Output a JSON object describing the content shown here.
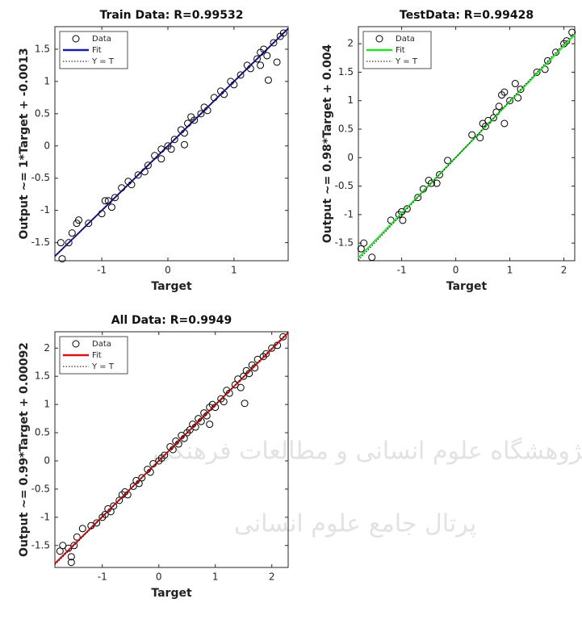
{
  "chart_data": [
    {
      "type": "scatter",
      "title": "Train Data: R=0.99532",
      "x_label": "Target",
      "y_label": "Output ~= 1*Target + -0.0013",
      "xlim": [
        -1.71,
        1.82
      ],
      "ylim": [
        -1.78,
        1.85
      ],
      "xticks": [
        -1,
        0,
        1
      ],
      "yticks": [
        -1.5,
        -1,
        -0.5,
        0,
        0.5,
        1,
        1.5
      ],
      "legend": "upper left",
      "series": [
        {
          "name": "Data",
          "kind": "markers",
          "color": "#000000",
          "x": [
            -1.6,
            -1.62,
            -1.5,
            -1.45,
            -1.38,
            -1.35,
            -1.2,
            -1.0,
            -0.95,
            -0.9,
            -0.85,
            -0.8,
            -0.7,
            -0.6,
            -0.55,
            -0.45,
            -0.35,
            -0.3,
            -0.2,
            -0.1,
            0.0,
            0.05,
            0.1,
            0.2,
            0.25,
            0.3,
            0.35,
            0.4,
            0.5,
            0.55,
            0.6,
            0.7,
            0.8,
            0.85,
            0.95,
            1.0,
            1.1,
            1.2,
            1.25,
            1.35,
            1.4,
            1.45,
            1.5,
            1.52,
            1.6,
            1.65,
            1.7,
            1.75,
            1.4,
            -0.1,
            0.25
          ],
          "values": [
            -1.75,
            -1.5,
            -1.5,
            -1.35,
            -1.2,
            -1.15,
            -1.2,
            -1.05,
            -0.85,
            -0.85,
            -0.95,
            -0.8,
            -0.65,
            -0.55,
            -0.6,
            -0.45,
            -0.4,
            -0.3,
            -0.15,
            -0.05,
            0.0,
            -0.05,
            0.1,
            0.25,
            0.2,
            0.35,
            0.45,
            0.4,
            0.5,
            0.6,
            0.55,
            0.75,
            0.85,
            0.8,
            1.0,
            0.95,
            1.1,
            1.25,
            1.2,
            1.35,
            1.45,
            1.5,
            1.4,
            1.02,
            1.6,
            1.3,
            1.7,
            1.75,
            1.25,
            -0.2,
            0.02
          ]
        },
        {
          "name": "Fit",
          "kind": "line",
          "color": "#1a1aa6",
          "dash": "solid",
          "x": [
            -1.71,
            1.82
          ],
          "values": [
            -1.71,
            1.82
          ]
        },
        {
          "name": "Y = T",
          "kind": "line",
          "color": "#000000",
          "dash": "dotted",
          "x": [
            -1.71,
            1.82
          ],
          "values": [
            -1.71,
            1.82
          ]
        }
      ]
    },
    {
      "type": "scatter",
      "title": "TestData: R=0.99428",
      "x_label": "Target",
      "y_label": "Output ~= 0.98*Target + 0.004",
      "xlim": [
        -1.8,
        2.2
      ],
      "ylim": [
        -1.81,
        2.3
      ],
      "xticks": [
        -1,
        0,
        1,
        2
      ],
      "yticks": [
        -1.5,
        -1,
        -0.5,
        0,
        0.5,
        1,
        1.5,
        2
      ],
      "legend": "upper left",
      "series": [
        {
          "name": "Data",
          "kind": "markers",
          "color": "#000000",
          "x": [
            -1.75,
            -1.7,
            -1.55,
            -1.2,
            -1.05,
            -1.0,
            -0.98,
            -0.9,
            -0.7,
            -0.6,
            -0.5,
            -0.45,
            -0.35,
            -0.3,
            -0.15,
            0.3,
            0.45,
            0.5,
            0.55,
            0.6,
            0.7,
            0.75,
            0.8,
            0.85,
            0.9,
            1.0,
            1.1,
            1.2,
            1.5,
            1.65,
            1.7,
            1.85,
            2.0,
            2.05,
            2.15,
            0.9,
            1.15
          ],
          "values": [
            -1.6,
            -1.5,
            -1.75,
            -1.1,
            -1.0,
            -0.95,
            -1.1,
            -0.9,
            -0.7,
            -0.55,
            -0.4,
            -0.45,
            -0.45,
            -0.3,
            -0.05,
            0.4,
            0.35,
            0.6,
            0.55,
            0.65,
            0.7,
            0.8,
            0.9,
            1.1,
            1.15,
            1.0,
            1.3,
            1.2,
            1.5,
            1.55,
            1.7,
            1.85,
            2.0,
            2.05,
            2.2,
            0.6,
            1.05
          ]
        },
        {
          "name": "Fit",
          "kind": "line",
          "color": "#22e622",
          "dash": "solid",
          "x": [
            -1.8,
            2.2
          ],
          "values": [
            -1.76,
            2.16
          ]
        },
        {
          "name": "Y = T",
          "kind": "line",
          "color": "#000000",
          "dash": "dotted",
          "x": [
            -1.8,
            2.2
          ],
          "values": [
            -1.8,
            2.2
          ]
        }
      ]
    },
    {
      "type": "scatter",
      "title": "All Data: R=0.9949",
      "x_label": "Target",
      "y_label": "Output ~= 0.99*Target + 0.00092",
      "xlim": [
        -1.84,
        2.29
      ],
      "ylim": [
        -1.89,
        2.29
      ],
      "xticks": [
        -1,
        0,
        1,
        2
      ],
      "yticks": [
        -1.5,
        -1,
        -0.5,
        0,
        0.5,
        1,
        1.5,
        2
      ],
      "legend": "upper left",
      "series": [
        {
          "name": "Data",
          "kind": "markers",
          "color": "#000000",
          "x": [
            -1.75,
            -1.7,
            -1.6,
            -1.55,
            -1.5,
            -1.45,
            -1.35,
            -1.2,
            -1.1,
            -1.0,
            -0.95,
            -0.9,
            -0.85,
            -0.8,
            -0.7,
            -0.65,
            -0.6,
            -0.55,
            -0.45,
            -0.4,
            -0.35,
            -0.3,
            -0.2,
            -0.15,
            -0.1,
            0.0,
            0.05,
            0.1,
            0.2,
            0.25,
            0.3,
            0.35,
            0.4,
            0.45,
            0.5,
            0.55,
            0.6,
            0.65,
            0.7,
            0.75,
            0.8,
            0.85,
            0.9,
            0.95,
            1.0,
            1.1,
            1.15,
            1.2,
            1.25,
            1.35,
            1.4,
            1.45,
            1.5,
            1.55,
            1.6,
            1.65,
            1.7,
            1.75,
            1.85,
            1.9,
            2.0,
            2.1,
            2.2,
            -1.55,
            0.9,
            1.52
          ],
          "values": [
            -1.6,
            -1.5,
            -1.55,
            -1.8,
            -1.5,
            -1.35,
            -1.2,
            -1.15,
            -1.1,
            -1.0,
            -0.95,
            -0.85,
            -0.9,
            -0.8,
            -0.7,
            -0.6,
            -0.55,
            -0.6,
            -0.45,
            -0.35,
            -0.4,
            -0.3,
            -0.15,
            -0.2,
            -0.05,
            0.0,
            0.05,
            0.1,
            0.25,
            0.2,
            0.35,
            0.3,
            0.45,
            0.4,
            0.5,
            0.55,
            0.65,
            0.6,
            0.75,
            0.7,
            0.85,
            0.8,
            0.95,
            1.0,
            0.95,
            1.1,
            1.05,
            1.25,
            1.2,
            1.35,
            1.45,
            1.3,
            1.5,
            1.6,
            1.55,
            1.7,
            1.65,
            1.8,
            1.85,
            1.9,
            2.0,
            2.05,
            2.2,
            -1.7,
            0.65,
            1.02
          ]
        },
        {
          "name": "Fit",
          "kind": "line",
          "color": "#e01010",
          "dash": "solid",
          "x": [
            -1.84,
            2.29
          ],
          "values": [
            -1.82,
            2.27
          ]
        },
        {
          "name": "Y = T",
          "kind": "line",
          "color": "#000000",
          "dash": "dotted",
          "x": [
            -1.84,
            2.29
          ],
          "values": [
            -1.84,
            2.29
          ]
        }
      ]
    }
  ],
  "watermark": {
    "line1": "پژوهشگاه علوم انسانی و مطالعات فرهنگی",
    "line2": "پرتال جامع علوم انسانی"
  }
}
